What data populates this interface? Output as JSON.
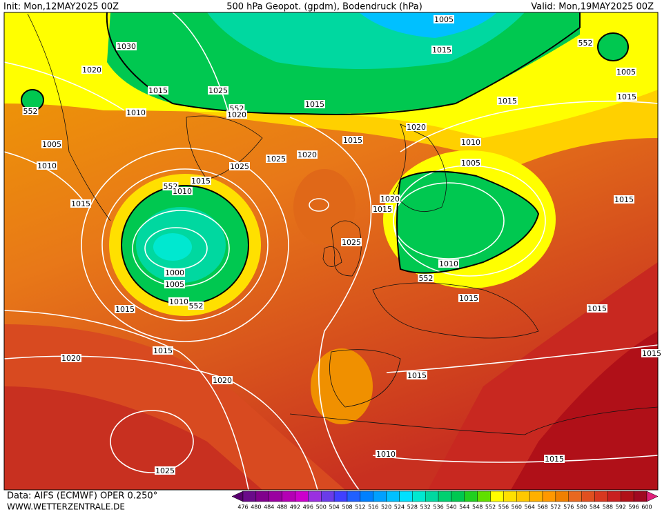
{
  "header": {
    "init": "Init: Mon,12MAY2025 00Z",
    "title": "500 hPa Geopot. (gpdm), Bodendruck (hPa)",
    "valid": "Valid: Mon,19MAY2025 00Z"
  },
  "isobar_labels": [
    "1005",
    "1015",
    "552",
    "1030",
    "1020",
    "1015",
    "1025",
    "1010",
    "552",
    "552",
    "1020",
    "1015",
    "1015",
    "1005",
    "1015",
    "1005",
    "1010",
    "1015",
    "1020",
    "1015",
    "1010",
    "1020",
    "1025",
    "1025",
    "1015",
    "1005",
    "552",
    "1010",
    "1015",
    "1020",
    "1015",
    "1025",
    "1000",
    "1005",
    "1010",
    "552",
    "1010",
    "552",
    "1015",
    "1015",
    "1015",
    "1015",
    "1020",
    "1020",
    "1015",
    "1010",
    "1015",
    "1025",
    "1015"
  ],
  "footer": {
    "source": "Data: AIFS (ECMWF) OPER 0.250°",
    "url": "WWW.WETTERZENTRALE.DE"
  },
  "colorbar": {
    "labels": [
      476,
      480,
      484,
      488,
      492,
      496,
      500,
      504,
      508,
      512,
      516,
      520,
      524,
      528,
      532,
      536,
      540,
      544,
      548,
      552,
      556,
      560,
      564,
      568,
      572,
      576,
      580,
      584,
      588,
      592,
      596,
      600
    ],
    "colors": [
      "#5a0070",
      "#6a0a8a",
      "#80008c",
      "#9a00a0",
      "#b400b4",
      "#cc00cc",
      "#9a30e0",
      "#6a3ce8",
      "#4040ff",
      "#2060ff",
      "#0080ff",
      "#00a0ff",
      "#00c0ff",
      "#00e0ff",
      "#00e8d0",
      "#00d8a0",
      "#00d070",
      "#00c850",
      "#20d020",
      "#60e000",
      "#ffff00",
      "#ffe000",
      "#ffc800",
      "#ffb000",
      "#ff9800",
      "#f08000",
      "#e86820",
      "#e05020",
      "#d83820",
      "#c82020",
      "#b01018",
      "#a00820",
      "#e0207a"
    ]
  }
}
